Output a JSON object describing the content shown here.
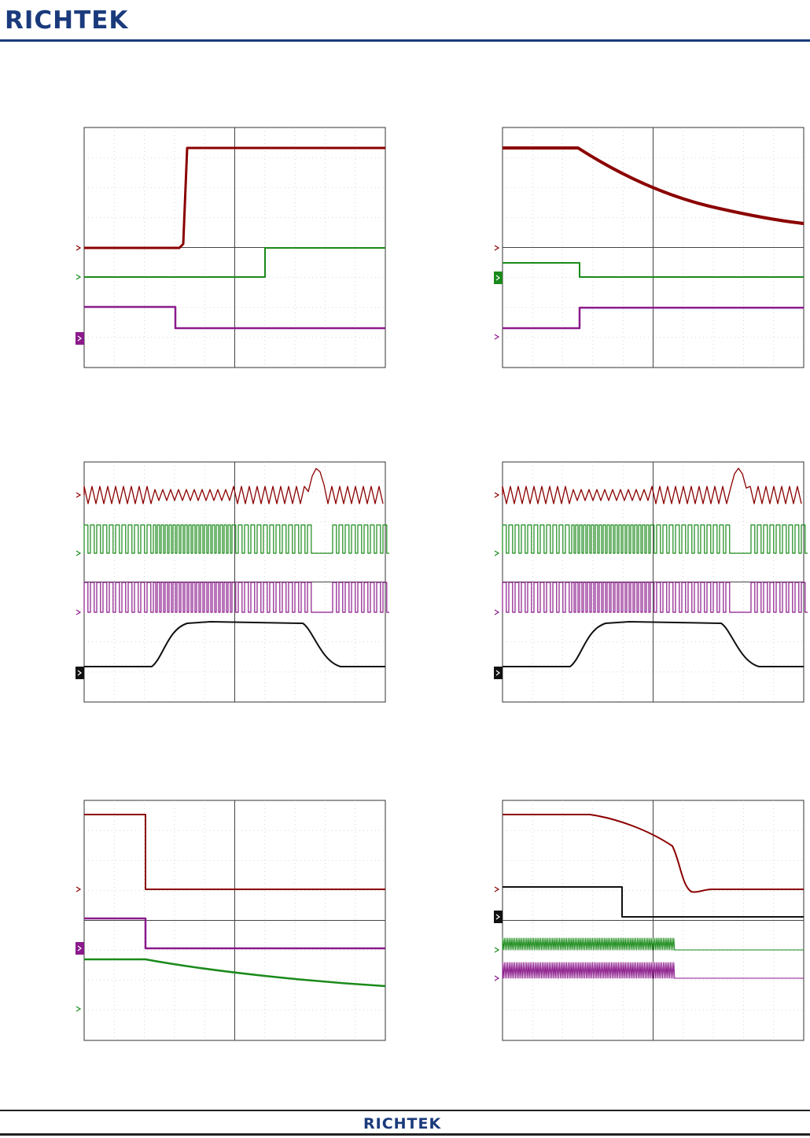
{
  "header": {
    "logo_text": "RICHTEK"
  },
  "footer": {
    "logo_text": "RICHTEK"
  },
  "colors": {
    "brand": "#1a3a7c",
    "ch_red": "#8b0000",
    "ch_green": "#1a8a1a",
    "ch_purple": "#8b1a8b",
    "ch_black": "#111111"
  },
  "scopes": [
    {
      "id": "scope-1",
      "marker_style": [
        "arrow",
        "arrow",
        "flag"
      ],
      "channels": [
        "red",
        "green",
        "purple"
      ]
    },
    {
      "id": "scope-2",
      "marker_style": [
        "arrow",
        "flag",
        "arrow"
      ],
      "channels": [
        "red",
        "green",
        "purple"
      ]
    },
    {
      "id": "scope-3",
      "marker_style": [
        "arrow",
        "arrow",
        "arrow",
        "flag"
      ],
      "channels": [
        "red",
        "green",
        "purple",
        "black"
      ]
    },
    {
      "id": "scope-4",
      "marker_style": [
        "arrow",
        "arrow",
        "arrow",
        "flag"
      ],
      "channels": [
        "red",
        "green",
        "purple",
        "black"
      ]
    },
    {
      "id": "scope-5",
      "marker_style": [
        "arrow",
        "flag",
        "arrow"
      ],
      "channels": [
        "red",
        "purple",
        "green"
      ]
    },
    {
      "id": "scope-6",
      "marker_style": [
        "arrow",
        "flag",
        "arrow",
        "arrow"
      ],
      "channels": [
        "red",
        "black",
        "green",
        "purple"
      ]
    }
  ]
}
